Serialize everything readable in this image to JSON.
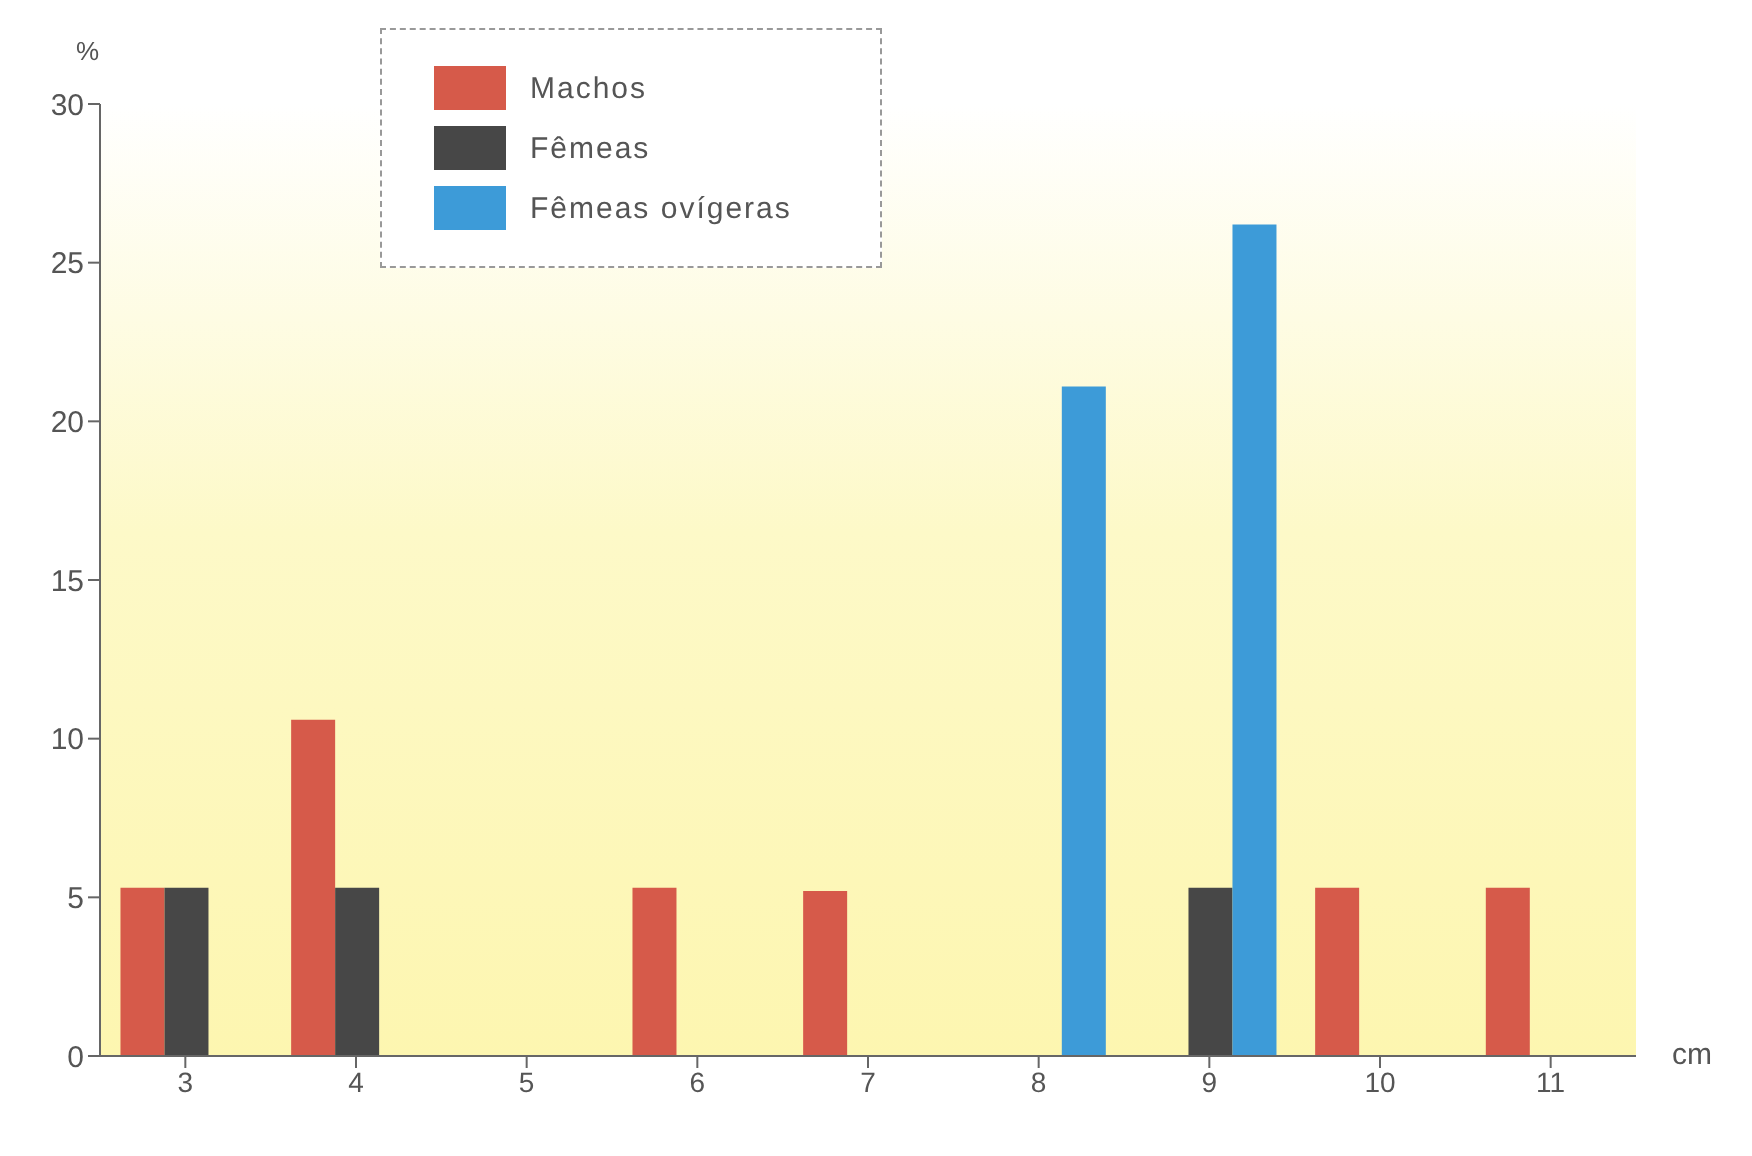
{
  "chart_data": {
    "type": "bar",
    "xlabel": "cm",
    "ylabel": "%",
    "categories": [
      "3",
      "4",
      "5",
      "6",
      "7",
      "8",
      "9",
      "10",
      "11"
    ],
    "series": [
      {
        "name": "Machos",
        "color": "#d65a4a",
        "values": [
          5.3,
          10.6,
          null,
          5.3,
          5.2,
          null,
          null,
          5.3,
          5.3
        ]
      },
      {
        "name": "Fêmeas",
        "color": "#474747",
        "values": [
          5.3,
          5.3,
          null,
          null,
          null,
          null,
          5.3,
          null,
          null
        ]
      },
      {
        "name": "Fêmeas ovígeras",
        "color": "#3d9bd8",
        "values": [
          null,
          null,
          null,
          null,
          null,
          21.1,
          26.2,
          null,
          null
        ]
      }
    ],
    "ylim": [
      0,
      30
    ],
    "yticks": [
      0,
      5,
      10,
      15,
      20,
      25,
      30
    ],
    "grid": false,
    "legend": "top left"
  }
}
